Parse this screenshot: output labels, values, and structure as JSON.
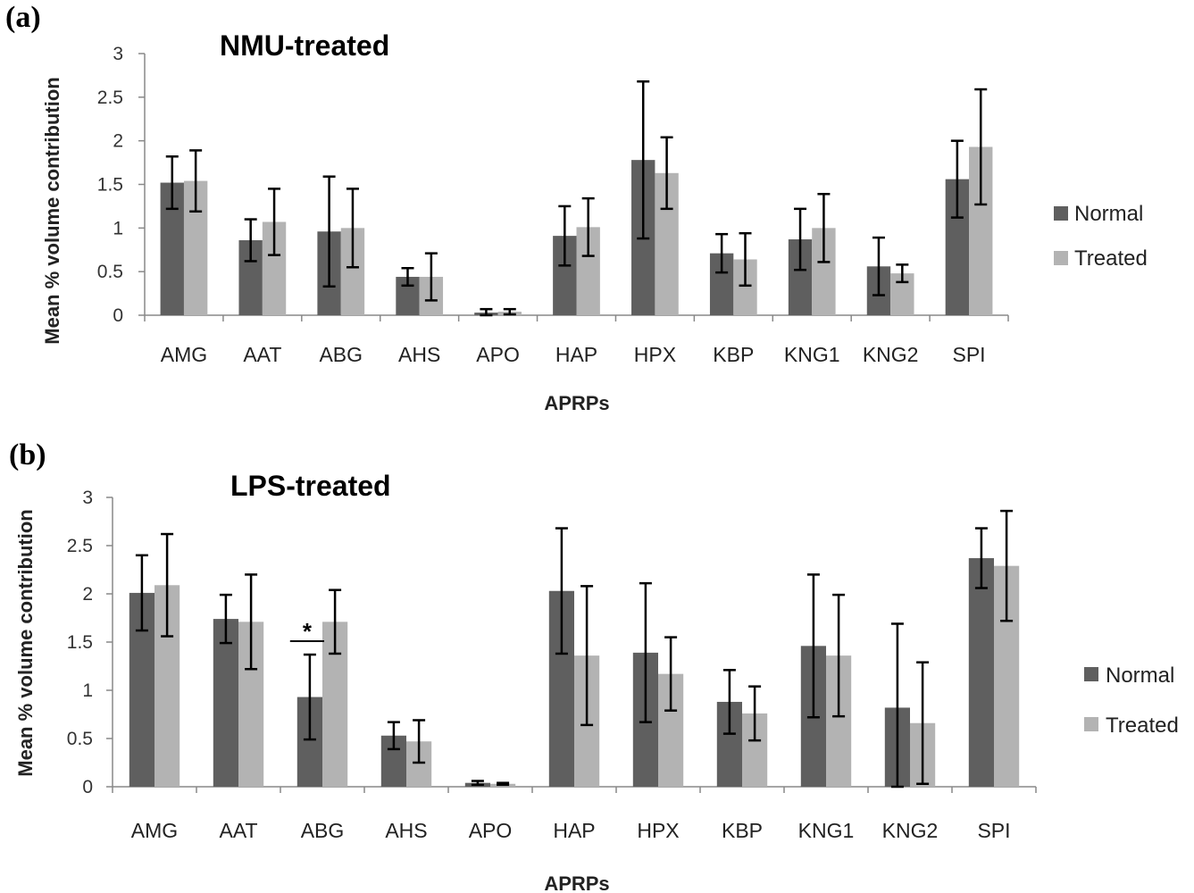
{
  "colors": {
    "normal": "#5f5f5f",
    "treated": "#b3b3b3",
    "error_bar": "#000000",
    "axis": "#888888"
  },
  "chart_data": [
    {
      "type": "bar",
      "panel_label": "(a)",
      "title": "NMU-treated",
      "xlabel": "APRPs",
      "ylabel": "Mean % volume contribution",
      "ylim": [
        0,
        3
      ],
      "yticks": [
        "0",
        "0.5",
        "1",
        "1.5",
        "2",
        "2.5",
        "3"
      ],
      "categories": [
        "AMG",
        "AAT",
        "ABG",
        "AHS",
        "APO",
        "HAP",
        "HPX",
        "KBP",
        "KNG1",
        "KNG2",
        "SPI"
      ],
      "series": [
        {
          "name": "Normal",
          "values": [
            1.52,
            0.86,
            0.96,
            0.44,
            0.03,
            0.91,
            1.78,
            0.71,
            0.87,
            0.56,
            1.56
          ],
          "errors": [
            0.3,
            0.24,
            0.63,
            0.1,
            0.04,
            0.34,
            0.9,
            0.22,
            0.35,
            0.33,
            0.44
          ]
        },
        {
          "name": "Treated",
          "values": [
            1.54,
            1.07,
            1.0,
            0.44,
            0.04,
            1.01,
            1.63,
            0.64,
            1.0,
            0.48,
            1.93
          ],
          "errors": [
            0.35,
            0.38,
            0.45,
            0.27,
            0.03,
            0.33,
            0.41,
            0.3,
            0.39,
            0.1,
            0.66
          ]
        }
      ],
      "legend": {
        "position": "right",
        "labels": [
          "Normal",
          "Treated"
        ]
      },
      "annotations": []
    },
    {
      "type": "bar",
      "panel_label": "(b)",
      "title": "LPS-treated",
      "xlabel": "APRPs",
      "ylabel": "Mean % volume contribution",
      "ylim": [
        0,
        3
      ],
      "yticks": [
        "0",
        "0.5",
        "1",
        "1.5",
        "2",
        "2.5",
        "3"
      ],
      "categories": [
        "AMG",
        "AAT",
        "ABG",
        "AHS",
        "APO",
        "HAP",
        "HPX",
        "KBP",
        "KNG1",
        "KNG2",
        "SPI"
      ],
      "series": [
        {
          "name": "Normal",
          "values": [
            2.01,
            1.74,
            0.93,
            0.53,
            0.04,
            2.03,
            1.39,
            0.88,
            1.46,
            0.82,
            2.37
          ],
          "errors": [
            0.39,
            0.25,
            0.44,
            0.14,
            0.02,
            0.65,
            0.72,
            0.33,
            0.74,
            0.87,
            0.31
          ]
        },
        {
          "name": "Treated",
          "values": [
            2.09,
            1.71,
            1.71,
            0.47,
            0.03,
            1.36,
            1.17,
            0.76,
            1.36,
            0.66,
            2.29
          ],
          "errors": [
            0.53,
            0.49,
            0.33,
            0.22,
            0.01,
            0.72,
            0.38,
            0.28,
            0.63,
            0.63,
            0.57
          ]
        }
      ],
      "legend": {
        "position": "right",
        "labels": [
          "Normal",
          "Treated"
        ]
      },
      "annotations": [
        {
          "category": "ABG",
          "text": "*"
        }
      ]
    }
  ]
}
